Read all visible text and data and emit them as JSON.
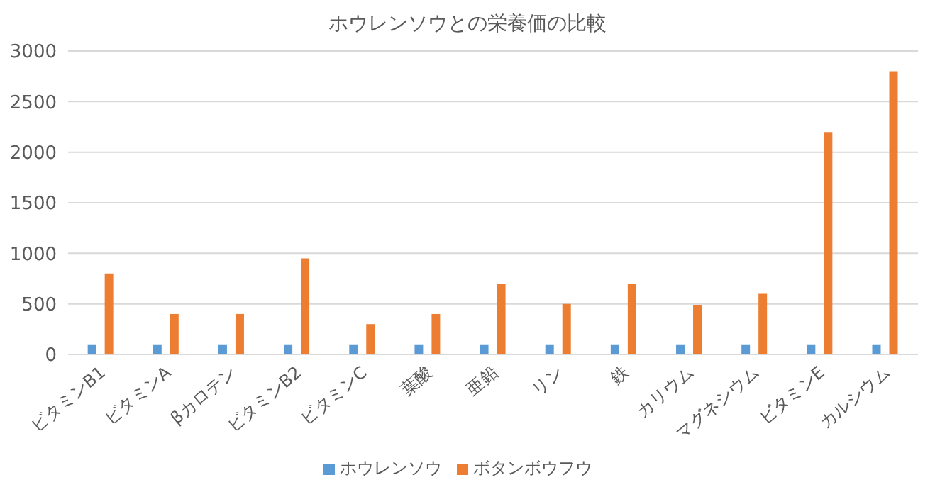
{
  "chart_data": {
    "type": "bar",
    "title": "ホウレンソウとの栄養価の比較",
    "categories": [
      "ビタミンB1",
      "ビタミンA",
      "βカロテン",
      "ビタミンB2",
      "ビタミンC",
      "葉酸",
      "亜鉛",
      "リン",
      "鉄",
      "カリウム",
      "マグネシウム",
      "ビタミンE",
      "カルシウム"
    ],
    "series": [
      {
        "name": "ホウレンソウ",
        "color": "#5b9bd5",
        "values": [
          100,
          100,
          100,
          100,
          100,
          100,
          100,
          100,
          100,
          100,
          100,
          100,
          100
        ]
      },
      {
        "name": "ボタンボウフウ",
        "color": "#ed7d31",
        "values": [
          800,
          400,
          400,
          950,
          300,
          400,
          700,
          500,
          700,
          490,
          600,
          2200,
          2800
        ]
      }
    ],
    "ylim": [
      0,
      3000
    ],
    "yticks": [
      0,
      500,
      1000,
      1500,
      2000,
      2500,
      3000
    ],
    "grid": "y",
    "legend": "bottom"
  }
}
